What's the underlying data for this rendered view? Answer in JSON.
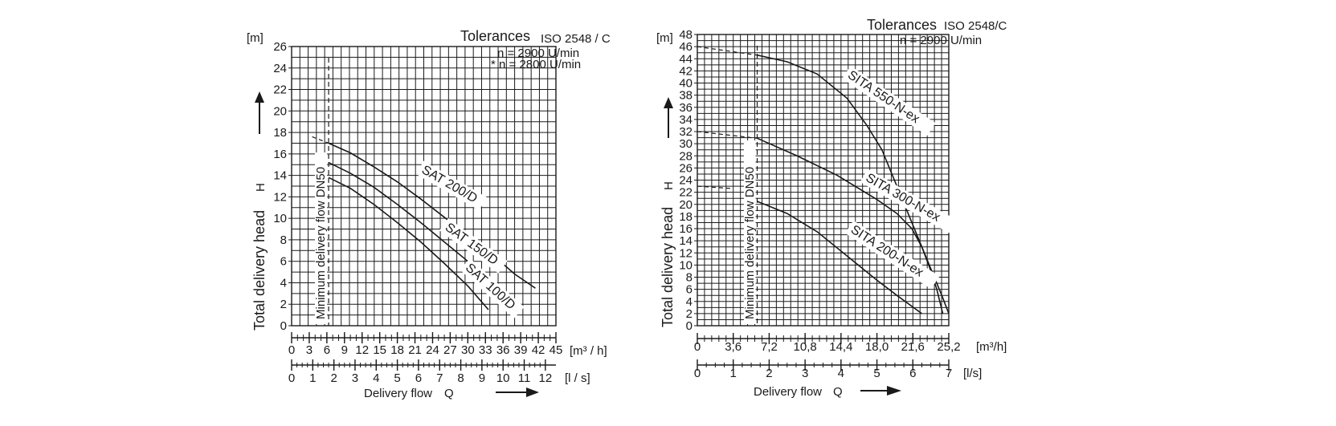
{
  "chart_data": [
    {
      "type": "line",
      "unit_label": "[m]",
      "tolerances_label": "Tolerances",
      "tolerances_std": "ISO 2548 / C",
      "speed_notes": [
        "n = 2900 U/min",
        "* n = 2800 U/min"
      ],
      "ylabel": "Total delivery head",
      "ysymbol": "H",
      "ylim": [
        0,
        26
      ],
      "y_ticks": [
        "0",
        "2",
        "4",
        "6",
        "8",
        "10",
        "12",
        "14",
        "16",
        "18",
        "20",
        "22",
        "24",
        "26"
      ],
      "xlim": [
        0,
        45
      ],
      "x_ticks_m3h": [
        "0",
        "3",
        "6",
        "9",
        "12",
        "15",
        "18",
        "21",
        "24",
        "27",
        "30",
        "33",
        "36",
        "39",
        "42",
        "45"
      ],
      "x_unit_m3h": "[m³ / h]",
      "x_ticks_ls": [
        "0",
        "1",
        "2",
        "3",
        "4",
        "5",
        "6",
        "7",
        "8",
        "9",
        "10",
        "11",
        "12"
      ],
      "x_unit_ls": "[l / s]",
      "xlabel": "Delivery flow",
      "xsymbol": "Q",
      "min_flow_label": "Minimum delivery flow DN50",
      "min_flow_x": 6.3,
      "grid": true,
      "series": [
        {
          "name": "SAT 200/D",
          "dashed": {
            "x": [
              3.5,
              6.3
            ],
            "y": [
              17.6,
              17.0
            ]
          },
          "x": [
            6.3,
            10,
            14,
            18,
            22,
            26,
            30,
            34,
            38,
            41.5
          ],
          "y": [
            17.0,
            16.1,
            14.8,
            13.4,
            11.8,
            10.1,
            8.4,
            6.7,
            4.8,
            3.5
          ]
        },
        {
          "name": "SAT 150/D",
          "x": [
            6.3,
            10,
            14,
            18,
            22,
            26,
            30,
            34,
            37.5
          ],
          "y": [
            15.2,
            14.2,
            12.9,
            11.3,
            9.6,
            7.8,
            6.0,
            4.0,
            2.2
          ]
        },
        {
          "name": "SAT 100/D",
          "x": [
            6.3,
            10,
            14,
            18,
            22,
            26,
            30,
            33.5
          ],
          "y": [
            13.8,
            12.8,
            11.3,
            9.6,
            7.8,
            5.8,
            3.7,
            1.5
          ]
        }
      ]
    },
    {
      "type": "line",
      "unit_label": "[m]",
      "tolerances_label": "Tolerances",
      "tolerances_std": "ISO 2548/C",
      "speed_notes": [
        "n = 2900 U/min"
      ],
      "ylabel": "Total delivery head",
      "ysymbol": "H",
      "ylim": [
        0,
        48
      ],
      "y_ticks": [
        "0",
        "2",
        "4",
        "6",
        "8",
        "10",
        "12",
        "14",
        "16",
        "18",
        "20",
        "22",
        "24",
        "26",
        "28",
        "30",
        "32",
        "34",
        "36",
        "38",
        "40",
        "42",
        "44",
        "46",
        "48"
      ],
      "xlim": [
        0,
        25.2
      ],
      "x_ticks_m3h": [
        "0",
        "3,6",
        "7,2",
        "10,8",
        "14,4",
        "18,0",
        "21,6",
        "25,2"
      ],
      "x_unit_m3h": "[m³/h]",
      "x_ticks_ls": [
        "0",
        "1",
        "2",
        "3",
        "4",
        "5",
        "6",
        "7"
      ],
      "x_unit_ls": "[l/s]",
      "xlabel": "Delivery flow",
      "xsymbol": "Q",
      "min_flow_label": "Minimum delivery flow DN50",
      "min_flow_x": 6.0,
      "grid": true,
      "series": [
        {
          "name": "SITA 550-N-ex",
          "dashed": {
            "x": [
              0,
              6.0
            ],
            "y": [
              46.0,
              44.6
            ]
          },
          "x": [
            6.0,
            9,
            12,
            15,
            17,
            18.5,
            19.5,
            20.5,
            21.5,
            22.5,
            23.5,
            24.5,
            25.2
          ],
          "y": [
            44.6,
            43.5,
            41.5,
            37.5,
            33.0,
            29.0,
            25.0,
            21.0,
            17.0,
            13.0,
            9.0,
            5.0,
            2.0
          ]
        },
        {
          "name": "SITA 300-N-ex",
          "dashed": {
            "x": [
              0,
              6.0
            ],
            "y": [
              32.0,
              30.9
            ]
          },
          "x": [
            6.0,
            10,
            14,
            18,
            20,
            21.5,
            22.5,
            23.3,
            24.0,
            24.6
          ],
          "y": [
            30.9,
            28.0,
            24.8,
            20.8,
            18.5,
            16.0,
            13.0,
            9.5,
            6.0,
            2.0
          ]
        },
        {
          "name": "SITA 200-N-ex",
          "dashed": {
            "x": [
              0,
              3.6
            ],
            "y": [
              23.0,
              22.6
            ]
          },
          "x": [
            6.0,
            9,
            12,
            15,
            18,
            20,
            22.5
          ],
          "y": [
            20.5,
            18.5,
            15.5,
            11.5,
            7.5,
            5.0,
            2.0
          ]
        }
      ]
    }
  ]
}
